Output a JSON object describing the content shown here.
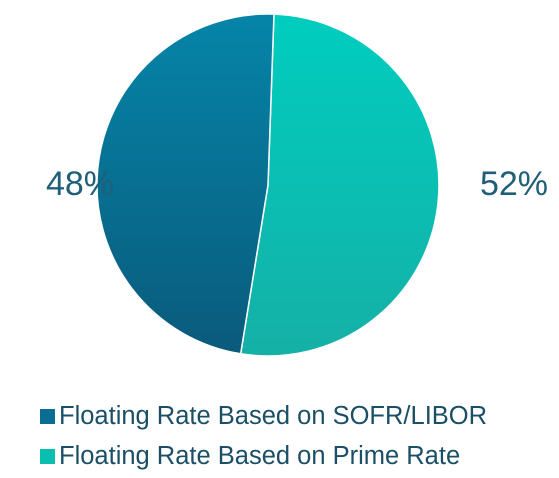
{
  "chart_data": {
    "type": "pie",
    "title": "",
    "slices": [
      {
        "name": "Floating Rate Based on SOFR/LIBOR",
        "value": 48,
        "label": "48%",
        "color": "#006f95"
      },
      {
        "name": "Floating Rate Based on Prime Rate",
        "value": 52,
        "label": "52%",
        "color": "#00c0b0"
      }
    ],
    "start": "top, clockwise (Prime Rate slice first)",
    "legend_position": "bottom"
  },
  "legend": {
    "items": [
      {
        "label": "Floating Rate Based on SOFR/LIBOR",
        "color": "#0a6e94"
      },
      {
        "label": "Floating Rate Based on Prime Rate",
        "color": "#0bbfb0"
      }
    ]
  }
}
